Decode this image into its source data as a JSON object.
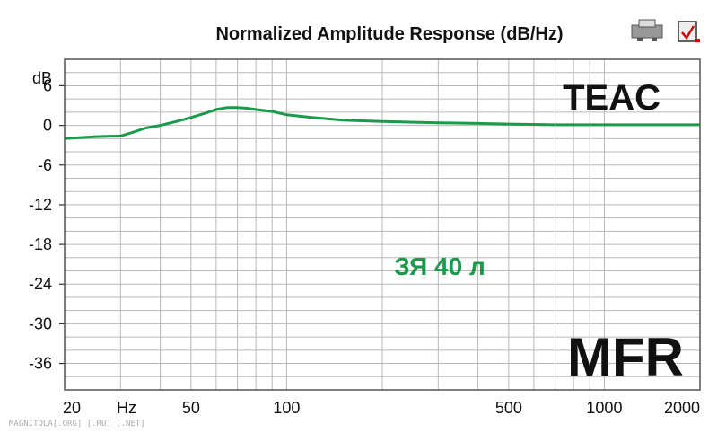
{
  "chart_data": {
    "type": "line",
    "title": "Normalized Amplitude Response (dB/Hz)",
    "ylabel": "dB",
    "xlabel": "Hz",
    "x_scale": "log",
    "xlim": [
      20,
      2000
    ],
    "ylim": [
      -40,
      10
    ],
    "y_ticks": [
      {
        "value": 6,
        "label": "6"
      },
      {
        "value": 0,
        "label": "0"
      },
      {
        "value": -6,
        "label": "-6"
      },
      {
        "value": -12,
        "label": "-12"
      },
      {
        "value": -18,
        "label": "-18"
      },
      {
        "value": -24,
        "label": "-24"
      },
      {
        "value": -30,
        "label": "-30"
      },
      {
        "value": -36,
        "label": "-36"
      }
    ],
    "x_ticks": [
      {
        "value": 20,
        "label": "20"
      },
      {
        "value": 50,
        "label": "50"
      },
      {
        "value": 100,
        "label": "100"
      },
      {
        "value": 500,
        "label": "500"
      },
      {
        "value": 1000,
        "label": "1000"
      },
      {
        "value": 2000,
        "label": "2000"
      }
    ],
    "grid": true,
    "series": [
      {
        "color": "#1a9a4a",
        "x": [
          20,
          25,
          30,
          33,
          36,
          40,
          45,
          50,
          55,
          60,
          65,
          70,
          75,
          80,
          90,
          100,
          120,
          150,
          200,
          300,
          400,
          500,
          700,
          1000,
          1500,
          2000
        ],
        "y": [
          -2.0,
          -1.7,
          -1.6,
          -1.0,
          -0.4,
          0.0,
          0.6,
          1.2,
          1.8,
          2.4,
          2.7,
          2.7,
          2.6,
          2.4,
          2.1,
          1.6,
          1.2,
          0.8,
          0.6,
          0.4,
          0.3,
          0.2,
          0.1,
          0.1,
          0.1,
          0.1
        ]
      }
    ]
  },
  "annotations": {
    "brand": "TEAC",
    "model": "ЗЯ 40 л",
    "measurement": "MFR",
    "watermark": "MAGNITOLA[.ORG] [.RU] [.NET]"
  }
}
